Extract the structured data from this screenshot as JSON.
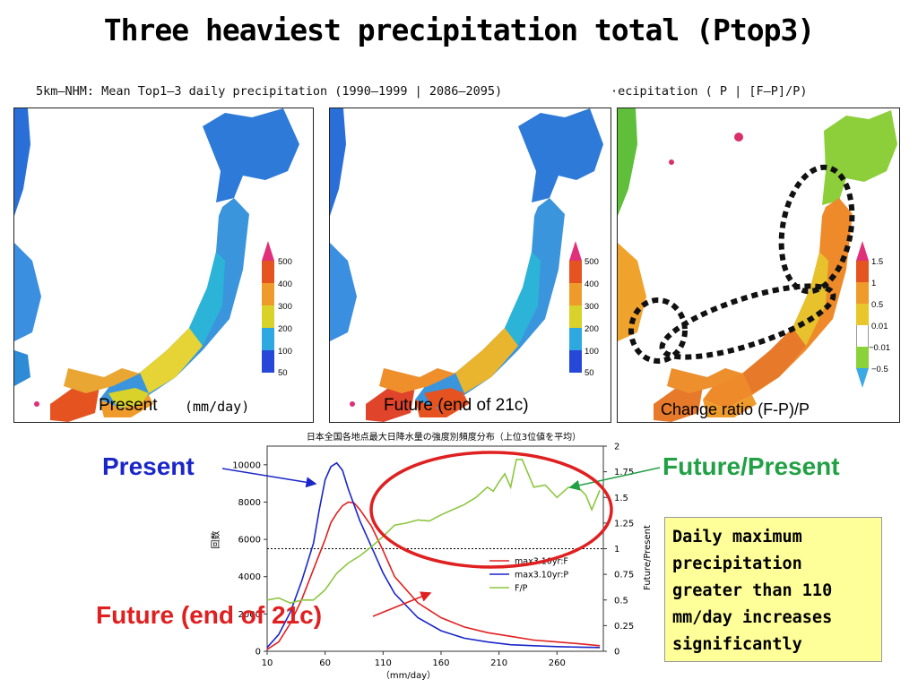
{
  "title": "Three heaviest precipitation total (Ptop3)",
  "maps_header_left": "5km—NHM: Mean Top1—3 daily precipitation (1990—1999 | 2086—2095)",
  "maps_header_right": "·ecipitation ( P | [F—P]/P)",
  "panels": [
    {
      "label": "Present",
      "unit": "(mm/day)"
    },
    {
      "label": "Future (end of 21c)"
    },
    {
      "label": "Change ratio  (F-P)/P"
    }
  ],
  "colorbar_precip": {
    "labels": [
      "500",
      "400",
      "300",
      "200",
      "100",
      "50"
    ],
    "colors": [
      "#e0307a",
      "#e55320",
      "#ef9b2c",
      "#d8d22a",
      "#2ea8e0",
      "#2747d8"
    ]
  },
  "colorbar_ratio": {
    "labels": [
      "1.5",
      "1",
      "0.5",
      "0.01",
      "−0.01",
      "−0.5"
    ],
    "colors": [
      "#e0307a",
      "#e55320",
      "#ef9b2c",
      "#e9c62c",
      "#ffffff",
      "#8ad13a",
      "#3aa9e6"
    ]
  },
  "callouts": {
    "present": "Present",
    "future_present": "Future/Present",
    "future": "Future (end of 21c)"
  },
  "note": "Daily maximum precipitation greater than 110 mm/day increases significantly",
  "chart_data": {
    "type": "line",
    "title": "日本全国各地点最大日降水量の強度別頻度分布（上位3位値を平均）",
    "xlabel": "（mm/day）",
    "ylabel": "回数",
    "y2label": "Future/Present",
    "xlim": [
      10,
      300
    ],
    "ylim": [
      0,
      11000
    ],
    "y2lim": [
      0,
      2
    ],
    "xticks": [
      10,
      60,
      110,
      160,
      210,
      260
    ],
    "yticks": [
      0,
      2000,
      4000,
      6000,
      8000,
      10000
    ],
    "y2ticks": [
      "0",
      "0.25",
      "0.5",
      "0.75",
      "1",
      "1.25",
      "1.5",
      "1.75",
      "2"
    ],
    "reference_line_y2": 1,
    "legend_position": "center-right",
    "series": [
      {
        "name": "max3.10yr:F",
        "color": "#e02020",
        "axis": "left",
        "x": [
          10,
          20,
          30,
          40,
          50,
          60,
          65,
          70,
          75,
          80,
          85,
          90,
          100,
          110,
          120,
          140,
          160,
          180,
          200,
          220,
          240,
          260,
          280,
          297
        ],
        "y": [
          100,
          500,
          1500,
          2800,
          4400,
          6000,
          6900,
          7400,
          7800,
          8000,
          7950,
          7600,
          6700,
          5400,
          4000,
          2600,
          1800,
          1300,
          1000,
          800,
          600,
          500,
          400,
          300
        ]
      },
      {
        "name": "max3.10yr:P",
        "color": "#1a26c8",
        "axis": "left",
        "x": [
          10,
          20,
          30,
          40,
          50,
          55,
          60,
          65,
          70,
          75,
          80,
          90,
          100,
          110,
          120,
          140,
          160,
          180,
          200,
          220,
          240,
          260,
          280,
          297
        ],
        "y": [
          200,
          900,
          2100,
          3800,
          5800,
          7600,
          9200,
          9900,
          10100,
          9700,
          8700,
          7000,
          5600,
          4200,
          3100,
          1800,
          1100,
          700,
          500,
          350,
          300,
          250,
          220,
          200
        ]
      },
      {
        "name": "F/P",
        "color": "#8cc63f",
        "axis": "right",
        "x": [
          10,
          20,
          30,
          40,
          50,
          60,
          70,
          80,
          90,
          100,
          110,
          120,
          130,
          140,
          150,
          160,
          170,
          180,
          190,
          200,
          205,
          210,
          215,
          220,
          225,
          230,
          240,
          250,
          260,
          270,
          280,
          285,
          290,
          297
        ],
        "y": [
          0.5,
          0.52,
          0.47,
          0.5,
          0.5,
          0.6,
          0.76,
          0.86,
          0.93,
          1.02,
          1.12,
          1.23,
          1.25,
          1.28,
          1.27,
          1.33,
          1.38,
          1.43,
          1.5,
          1.6,
          1.56,
          1.65,
          1.73,
          1.6,
          1.87,
          1.87,
          1.6,
          1.62,
          1.5,
          1.6,
          1.58,
          1.52,
          1.38,
          1.57
        ]
      }
    ]
  }
}
